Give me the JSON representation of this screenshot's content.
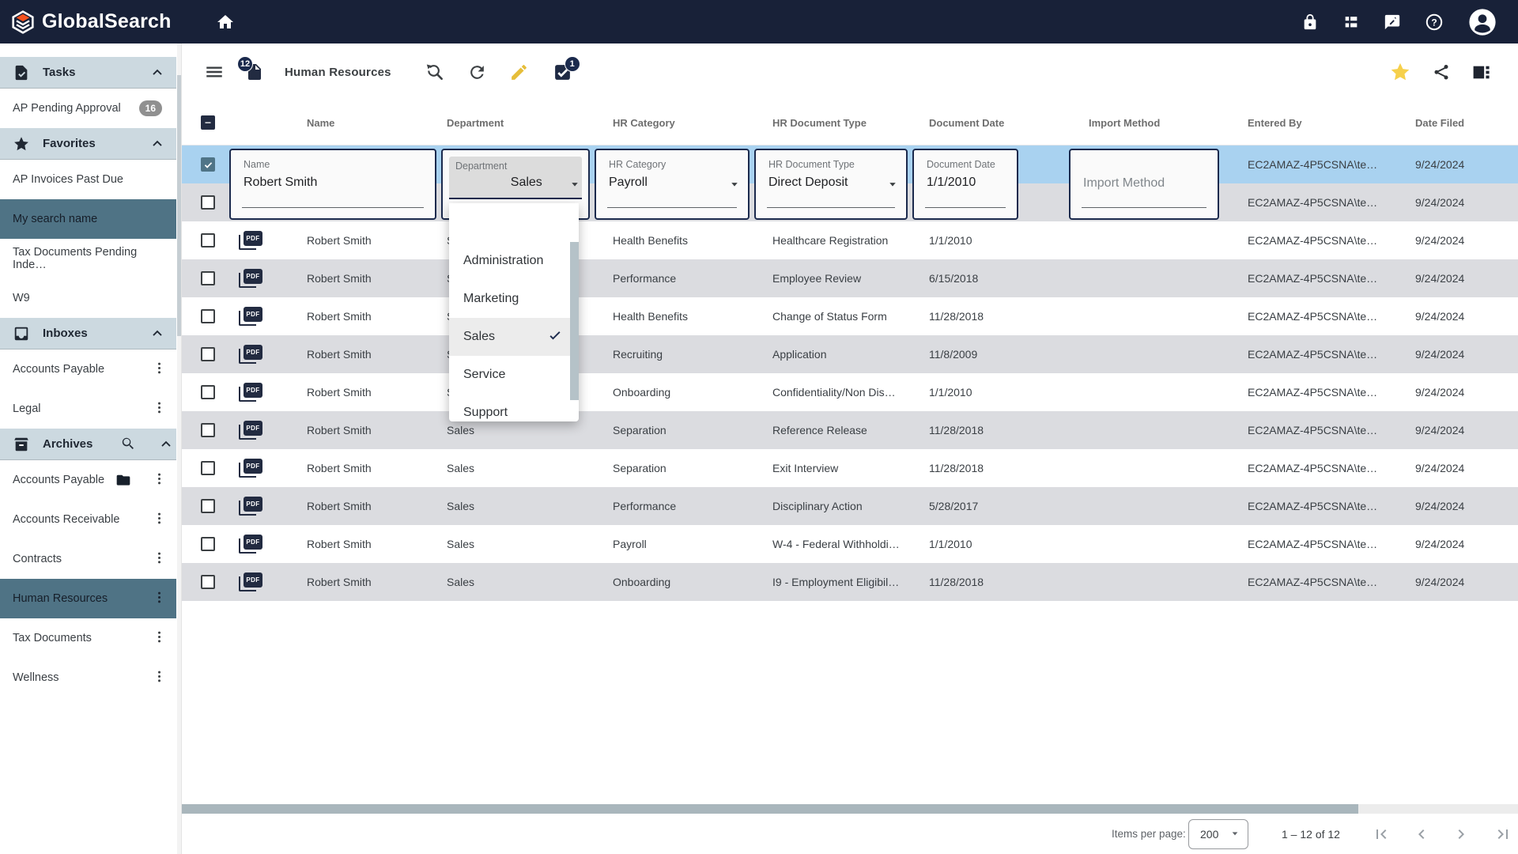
{
  "navbar": {
    "brand": "GlobalSearch"
  },
  "toolbar": {
    "title": "Human Resources",
    "doc_badge": "12",
    "tasks_badge": "1"
  },
  "icons": {
    "pdf_label": "PDF"
  },
  "sidebar": {
    "sections": [
      {
        "label": "Tasks",
        "icon": "tasks",
        "items": [
          {
            "label": "AP Pending Approval",
            "badge": "16"
          }
        ]
      },
      {
        "label": "Favorites",
        "icon": "star",
        "items": [
          {
            "label": "AP Invoices Past Due"
          },
          {
            "label": "My search name",
            "selected": true
          },
          {
            "label": "Tax Documents Pending Inde…"
          },
          {
            "label": "W9"
          }
        ]
      },
      {
        "label": "Inboxes",
        "icon": "inbox",
        "items": [
          {
            "label": "Accounts Payable",
            "kebab": true
          },
          {
            "label": "Legal",
            "kebab": true
          }
        ]
      },
      {
        "label": "Archives",
        "icon": "archive",
        "search": true,
        "items": [
          {
            "label": "Accounts Payable",
            "folder": true,
            "kebab": true
          },
          {
            "label": "Accounts Receivable",
            "kebab": true
          },
          {
            "label": "Contracts",
            "kebab": true
          },
          {
            "label": "Human Resources",
            "selected": true,
            "kebab": true
          },
          {
            "label": "Tax Documents",
            "kebab": true
          },
          {
            "label": "Wellness",
            "kebab": true
          }
        ]
      }
    ]
  },
  "table": {
    "columns": [
      "Name",
      "Department",
      "HR Category",
      "HR Document Type",
      "Document Date",
      "Import Method",
      "Entered By",
      "Date Filed"
    ],
    "rows": [
      {
        "shade": "blue",
        "checked": true,
        "name": "",
        "department": "",
        "hr_category": "",
        "hr_document_type": "",
        "document_date": "",
        "entered_by": "EC2AMAZ-4P5CSNA\\te…",
        "date_filed": "9/24/2024"
      },
      {
        "shade": "grey",
        "name": "",
        "department": "",
        "hr_category": "",
        "hr_document_type": "",
        "document_date": "",
        "entered_by": "EC2AMAZ-4P5CSNA\\te…",
        "date_filed": "9/24/2024"
      },
      {
        "shade": "white",
        "name": "Robert Smith",
        "department": "Sales",
        "hr_category": "Health Benefits",
        "hr_document_type": "Healthcare Registration",
        "document_date": "1/1/2010",
        "entered_by": "EC2AMAZ-4P5CSNA\\te…",
        "date_filed": "9/24/2024"
      },
      {
        "shade": "grey",
        "name": "Robert Smith",
        "department": "Sales",
        "hr_category": "Performance",
        "hr_document_type": "Employee Review",
        "document_date": "6/15/2018",
        "entered_by": "EC2AMAZ-4P5CSNA\\te…",
        "date_filed": "9/24/2024"
      },
      {
        "shade": "white",
        "name": "Robert Smith",
        "department": "Sales",
        "hr_category": "Health Benefits",
        "hr_document_type": "Change of Status Form",
        "document_date": "11/28/2018",
        "entered_by": "EC2AMAZ-4P5CSNA\\te…",
        "date_filed": "9/24/2024"
      },
      {
        "shade": "grey",
        "name": "Robert Smith",
        "department": "Sales",
        "hr_category": "Recruiting",
        "hr_document_type": "Application",
        "document_date": "11/8/2009",
        "entered_by": "EC2AMAZ-4P5CSNA\\te…",
        "date_filed": "9/24/2024"
      },
      {
        "shade": "white",
        "name": "Robert Smith",
        "department": "Sales",
        "hr_category": "Onboarding",
        "hr_document_type": "Confidentiality/Non Dis…",
        "document_date": "1/1/2010",
        "entered_by": "EC2AMAZ-4P5CSNA\\te…",
        "date_filed": "9/24/2024"
      },
      {
        "shade": "grey",
        "name": "Robert Smith",
        "department": "Sales",
        "hr_category": "Separation",
        "hr_document_type": "Reference Release",
        "document_date": "11/28/2018",
        "entered_by": "EC2AMAZ-4P5CSNA\\te…",
        "date_filed": "9/24/2024"
      },
      {
        "shade": "white",
        "name": "Robert Smith",
        "department": "Sales",
        "hr_category": "Separation",
        "hr_document_type": "Exit Interview",
        "document_date": "11/28/2018",
        "entered_by": "EC2AMAZ-4P5CSNA\\te…",
        "date_filed": "9/24/2024"
      },
      {
        "shade": "grey",
        "name": "Robert Smith",
        "department": "Sales",
        "hr_category": "Performance",
        "hr_document_type": "Disciplinary Action",
        "document_date": "5/28/2017",
        "entered_by": "EC2AMAZ-4P5CSNA\\te…",
        "date_filed": "9/24/2024"
      },
      {
        "shade": "white",
        "name": "Robert Smith",
        "department": "Sales",
        "hr_category": "Payroll",
        "hr_document_type": "W-4 - Federal Withholdi…",
        "document_date": "1/1/2010",
        "entered_by": "EC2AMAZ-4P5CSNA\\te…",
        "date_filed": "9/24/2024"
      },
      {
        "shade": "grey",
        "name": "Robert Smith",
        "department": "Sales",
        "hr_category": "Onboarding",
        "hr_document_type": "I9 - Employment Eligibil…",
        "document_date": "11/28/2018",
        "entered_by": "EC2AMAZ-4P5CSNA\\te…",
        "date_filed": "9/24/2024"
      }
    ]
  },
  "edit": {
    "name": {
      "label": "Name",
      "value": "Robert Smith"
    },
    "department": {
      "label": "Department",
      "value": "Sales"
    },
    "hr_category": {
      "label": "HR Category",
      "value": "Payroll"
    },
    "hr_document_type": {
      "label": "HR Document Type",
      "value": "Direct Deposit"
    },
    "document_date": {
      "label": "Document Date",
      "value": "1/1/2010"
    },
    "import_method": {
      "placeholder": "Import Method"
    }
  },
  "dropdown": {
    "options": [
      {
        "label": "Administration"
      },
      {
        "label": "Marketing"
      },
      {
        "label": "Sales",
        "selected": true
      },
      {
        "label": "Service"
      },
      {
        "label": "Support"
      }
    ]
  },
  "pagination": {
    "items_per_page_label": "Items per page:",
    "page_size": "200",
    "range": "1 – 12 of 12"
  }
}
